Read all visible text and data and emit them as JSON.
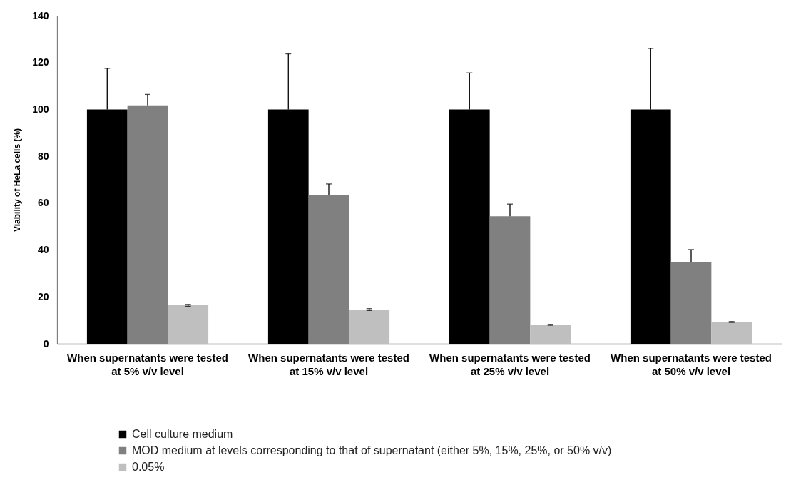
{
  "chart_data": {
    "type": "bar",
    "categories": [
      "When supernatants were tested at 5% v/v level",
      "When supernatants were tested at 15% v/v level",
      "When supernatants were tested at 25% v/v level",
      "When supernatants were tested at 50% v/v level"
    ],
    "ylabel": "Viability of HeLa cells (%)",
    "ylim": [
      0,
      140
    ],
    "yticks": [
      0,
      20,
      40,
      60,
      80,
      100,
      120,
      140
    ],
    "legend": "bottom",
    "series": [
      {
        "name": "Cell culture medium",
        "color": "#000000",
        "values": [
          100,
          100,
          100,
          100
        ],
        "errors": [
          [
            100,
            117.5
          ],
          [
            100,
            123.7
          ],
          [
            100,
            115.6
          ],
          [
            100,
            126
          ]
        ]
      },
      {
        "name": "MOD medium at levels corresponding to that of supernatant (either 5%, 15%, 25%, or 50% v/v)",
        "color": "#808080",
        "values": [
          101.7,
          63.5,
          54.4,
          35.0
        ],
        "errors": [
          [
            101.7,
            106.4
          ],
          [
            63.5,
            68.2
          ],
          [
            54.4,
            59.6
          ],
          [
            35.0,
            40.2
          ]
        ]
      },
      {
        "name": "0.05%",
        "color": "#bfbfbf",
        "values": [
          16.4,
          14.6,
          8.1,
          9.3
        ],
        "errors": [
          0.4,
          0.4,
          0.2,
          0.2
        ]
      }
    ]
  }
}
